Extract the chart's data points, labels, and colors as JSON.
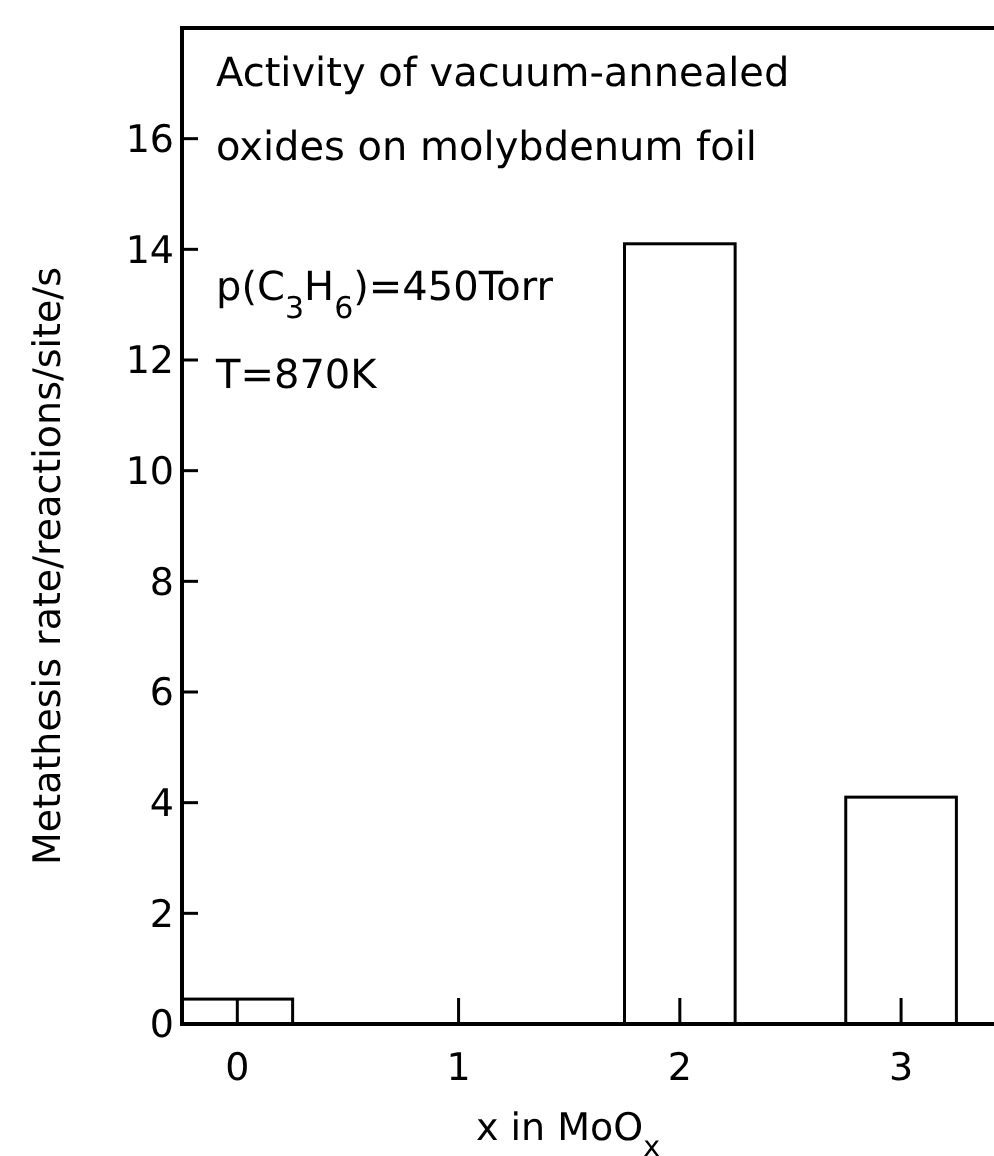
{
  "chart_data": {
    "type": "bar",
    "title": "Activity of vacuum-annealed oxides on molybdenum foil",
    "x": [
      0,
      1,
      2,
      3
    ],
    "values": [
      0.45,
      0,
      14.1,
      4.1
    ],
    "color": "#ffffff",
    "xlim": [
      -0.25,
      3.42
    ],
    "xticks": [
      0,
      1,
      2,
      3
    ],
    "ylim": [
      0,
      18
    ],
    "yticks": [
      0,
      2,
      4,
      6,
      8,
      10,
      12,
      14,
      16
    ],
    "xlabel": "x in MoO$_{x}$",
    "ylabel": "Metathesis rate/reactions/site/s",
    "annotations": [
      "p(C$_{3}$H$_{6}$)=450Torr",
      "T=870K"
    ],
    "grid": false
  }
}
